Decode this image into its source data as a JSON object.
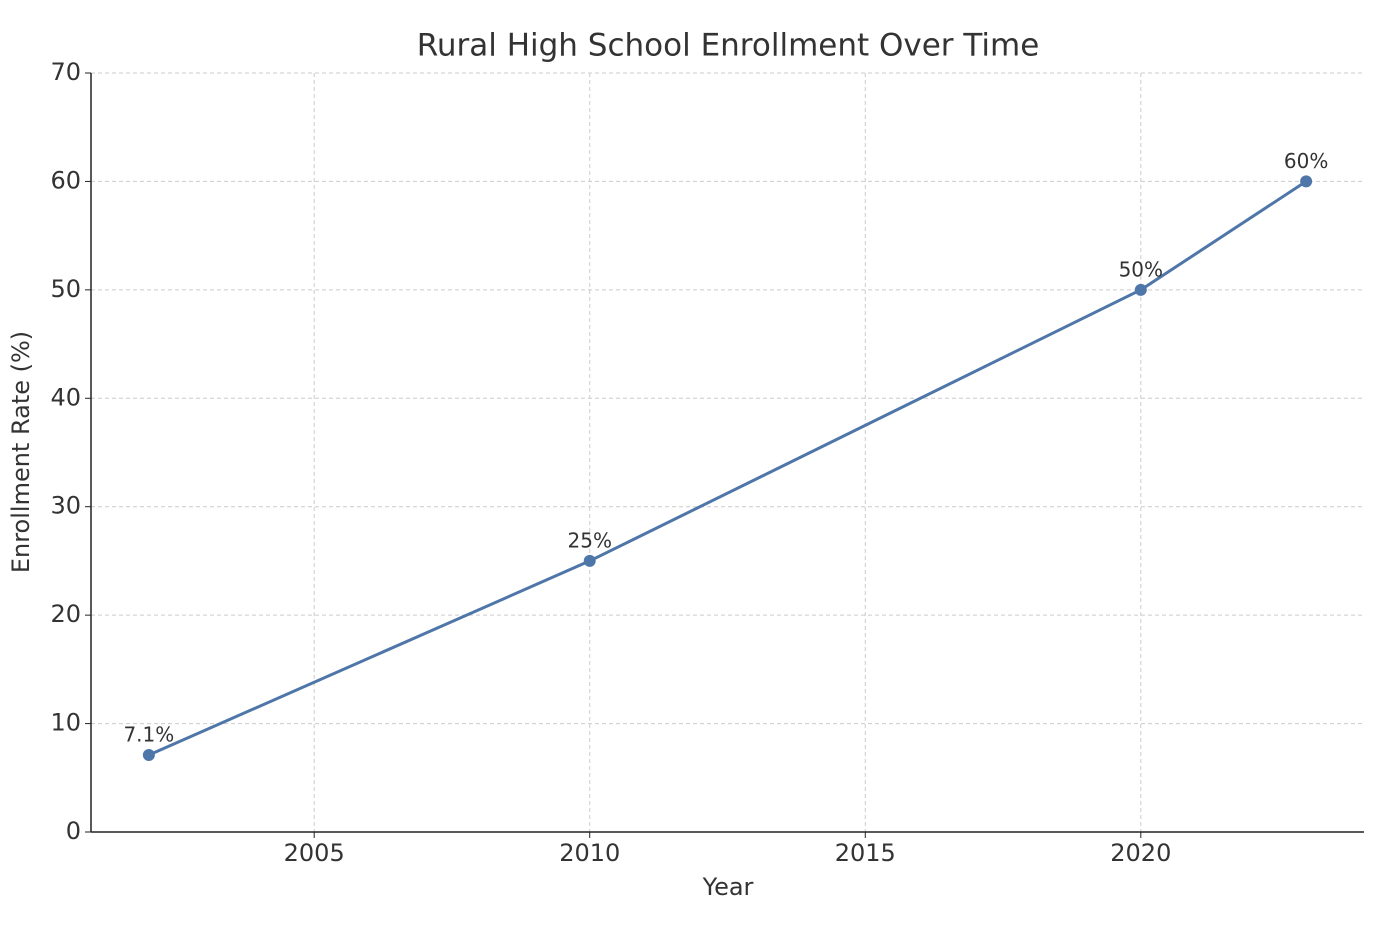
{
  "chart_data": {
    "type": "line",
    "title": "Rural High School Enrollment Over Time",
    "x_label": "Year",
    "y_label": "Enrollment Rate (%)",
    "x": [
      2002,
      2010,
      2020,
      2023
    ],
    "series": [
      {
        "color": "#4e76a9",
        "values": [
          7.1,
          25,
          50,
          60
        ],
        "value_labels": [
          "7.1%",
          "25%",
          "50%",
          "60%"
        ]
      }
    ],
    "xlim": [
      2000.95,
      2024.05
    ],
    "xticks": [
      2005,
      2010,
      2015,
      2020
    ],
    "ylim": [
      0,
      70
    ],
    "yticks": [
      0,
      10,
      20,
      30,
      40,
      50,
      60,
      70
    ],
    "grid": true
  }
}
